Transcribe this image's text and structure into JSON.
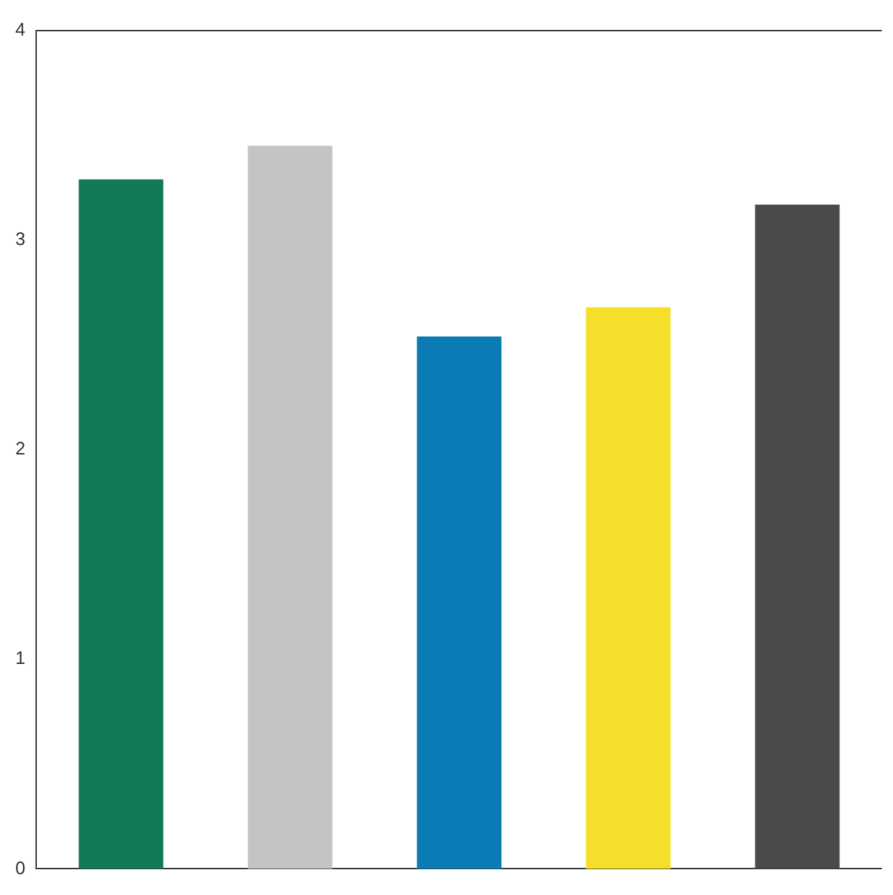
{
  "chart_data": {
    "type": "bar",
    "categories": [
      null,
      null,
      null,
      null,
      null
    ],
    "values": [
      3.29,
      3.45,
      2.54,
      2.68,
      3.17
    ],
    "colors": [
      "#127a55",
      "#c4c4c4",
      "#0a7bb4",
      "#f5df2a",
      "#4a4a4a"
    ],
    "ylim": [
      0,
      4
    ],
    "yticks": [
      0,
      1,
      2,
      3,
      4
    ],
    "grid": false,
    "legend": false
  }
}
